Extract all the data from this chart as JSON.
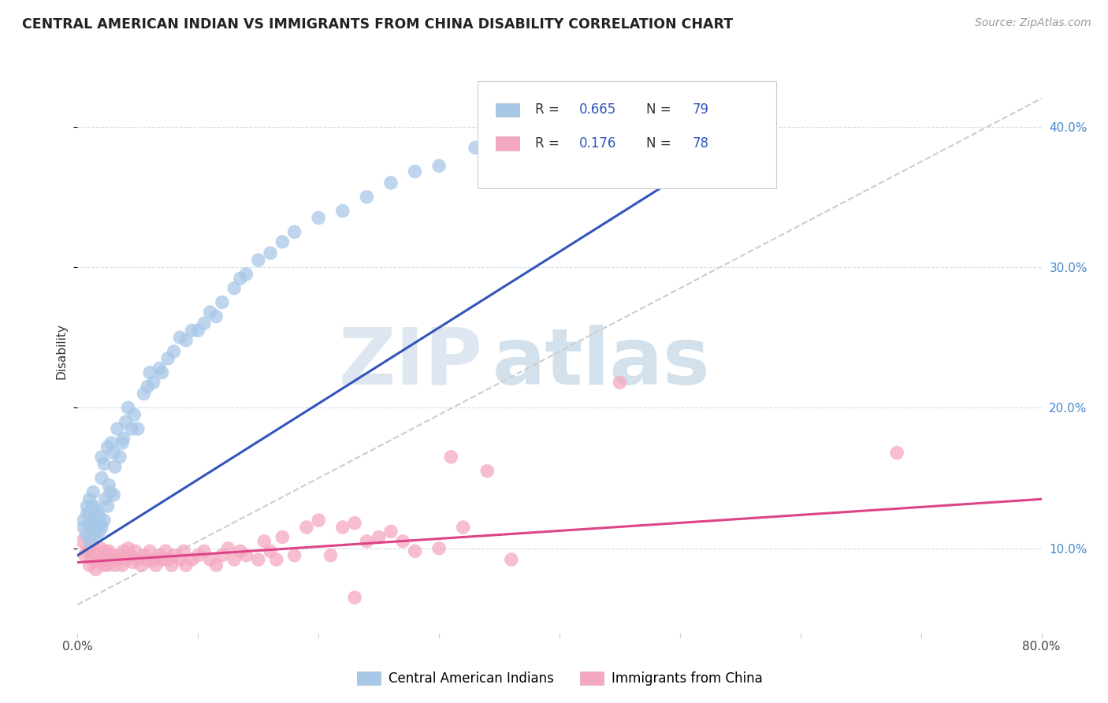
{
  "title": "CENTRAL AMERICAN INDIAN VS IMMIGRANTS FROM CHINA DISABILITY CORRELATION CHART",
  "source": "Source: ZipAtlas.com",
  "ylabel": "Disability",
  "xlim": [
    0.0,
    0.8
  ],
  "ylim": [
    0.04,
    0.44
  ],
  "x_ticks": [
    0.0,
    0.1,
    0.2,
    0.3,
    0.4,
    0.5,
    0.6,
    0.7,
    0.8
  ],
  "x_tick_labels": [
    "0.0%",
    "",
    "",
    "",
    "",
    "",
    "",
    "",
    "80.0%"
  ],
  "y_ticks": [
    0.1,
    0.2,
    0.3,
    0.4
  ],
  "y_tick_labels": [
    "10.0%",
    "20.0%",
    "30.0%",
    "40.0%"
  ],
  "blue_color": "#A8C8E8",
  "pink_color": "#F4A8C0",
  "blue_line_color": "#3355BB",
  "pink_line_color": "#DD4488",
  "dashed_line_color": "#CCCCCC",
  "legend_color_blue": "#3355BB",
  "legend_color_pink": "#DD4488",
  "watermark_zip": "ZIP",
  "watermark_atlas": "atlas",
  "blue_scatter_x": [
    0.005,
    0.005,
    0.007,
    0.008,
    0.008,
    0.01,
    0.01,
    0.01,
    0.01,
    0.012,
    0.012,
    0.013,
    0.013,
    0.014,
    0.015,
    0.015,
    0.015,
    0.016,
    0.017,
    0.018,
    0.018,
    0.019,
    0.02,
    0.02,
    0.02,
    0.022,
    0.022,
    0.023,
    0.025,
    0.025,
    0.026,
    0.027,
    0.028,
    0.03,
    0.03,
    0.031,
    0.033,
    0.035,
    0.037,
    0.038,
    0.04,
    0.042,
    0.045,
    0.047,
    0.05,
    0.055,
    0.058,
    0.06,
    0.063,
    0.068,
    0.07,
    0.075,
    0.08,
    0.085,
    0.09,
    0.095,
    0.1,
    0.105,
    0.11,
    0.115,
    0.12,
    0.13,
    0.135,
    0.14,
    0.15,
    0.16,
    0.17,
    0.18,
    0.2,
    0.22,
    0.24,
    0.26,
    0.28,
    0.3,
    0.33,
    0.36,
    0.39,
    0.42,
    0.46
  ],
  "blue_scatter_y": [
    0.115,
    0.12,
    0.11,
    0.125,
    0.13,
    0.105,
    0.115,
    0.125,
    0.135,
    0.11,
    0.12,
    0.13,
    0.14,
    0.118,
    0.108,
    0.118,
    0.128,
    0.115,
    0.125,
    0.112,
    0.122,
    0.118,
    0.115,
    0.15,
    0.165,
    0.12,
    0.16,
    0.135,
    0.13,
    0.172,
    0.145,
    0.14,
    0.175,
    0.138,
    0.168,
    0.158,
    0.185,
    0.165,
    0.175,
    0.178,
    0.19,
    0.2,
    0.185,
    0.195,
    0.185,
    0.21,
    0.215,
    0.225,
    0.218,
    0.228,
    0.225,
    0.235,
    0.24,
    0.25,
    0.248,
    0.255,
    0.255,
    0.26,
    0.268,
    0.265,
    0.275,
    0.285,
    0.292,
    0.295,
    0.305,
    0.31,
    0.318,
    0.325,
    0.335,
    0.34,
    0.35,
    0.36,
    0.368,
    0.372,
    0.385,
    0.39,
    0.4,
    0.415,
    0.425
  ],
  "pink_scatter_x": [
    0.004,
    0.006,
    0.008,
    0.01,
    0.01,
    0.012,
    0.013,
    0.015,
    0.016,
    0.018,
    0.019,
    0.02,
    0.022,
    0.023,
    0.025,
    0.026,
    0.028,
    0.03,
    0.031,
    0.033,
    0.035,
    0.037,
    0.038,
    0.04,
    0.042,
    0.044,
    0.046,
    0.048,
    0.05,
    0.053,
    0.055,
    0.058,
    0.06,
    0.063,
    0.065,
    0.068,
    0.07,
    0.073,
    0.075,
    0.078,
    0.08,
    0.085,
    0.088,
    0.09,
    0.095,
    0.1,
    0.105,
    0.11,
    0.115,
    0.12,
    0.125,
    0.13,
    0.135,
    0.14,
    0.15,
    0.155,
    0.16,
    0.165,
    0.17,
    0.18,
    0.19,
    0.2,
    0.21,
    0.22,
    0.23,
    0.24,
    0.25,
    0.26,
    0.27,
    0.28,
    0.3,
    0.31,
    0.32,
    0.34,
    0.36,
    0.68,
    0.23,
    0.45
  ],
  "pink_scatter_y": [
    0.105,
    0.095,
    0.098,
    0.088,
    0.098,
    0.092,
    0.102,
    0.085,
    0.095,
    0.09,
    0.1,
    0.092,
    0.088,
    0.098,
    0.088,
    0.098,
    0.092,
    0.095,
    0.088,
    0.092,
    0.095,
    0.088,
    0.098,
    0.092,
    0.1,
    0.095,
    0.09,
    0.098,
    0.092,
    0.088,
    0.095,
    0.092,
    0.098,
    0.092,
    0.088,
    0.095,
    0.092,
    0.098,
    0.092,
    0.088,
    0.095,
    0.092,
    0.098,
    0.088,
    0.092,
    0.095,
    0.098,
    0.092,
    0.088,
    0.095,
    0.1,
    0.092,
    0.098,
    0.095,
    0.092,
    0.105,
    0.098,
    0.092,
    0.108,
    0.095,
    0.115,
    0.12,
    0.095,
    0.115,
    0.118,
    0.105,
    0.108,
    0.112,
    0.105,
    0.098,
    0.1,
    0.165,
    0.115,
    0.155,
    0.092,
    0.168,
    0.065,
    0.218
  ]
}
